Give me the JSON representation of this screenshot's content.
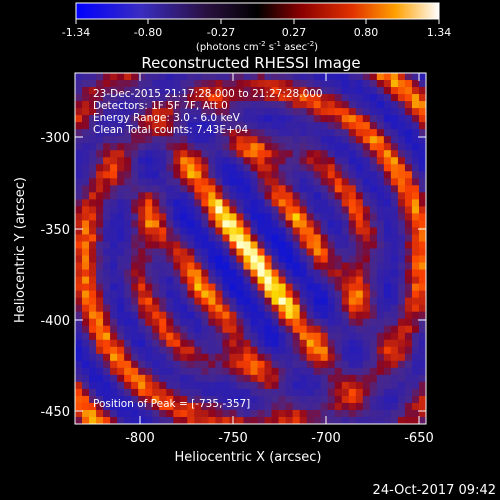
{
  "colorbar": {
    "tick_labels": [
      "-1.34",
      "-0.80",
      "-0.27",
      "0.27",
      "0.80",
      "1.34"
    ],
    "units": "(photons cm",
    "units_exp1": "-2",
    "units_mid": " s",
    "units_exp2": "-1",
    "units_end": " asec",
    "units_exp3": "-2",
    "units_close": ")"
  },
  "title": "Reconstructed RHESSI Image",
  "info": {
    "line1": "23-Dec-2015 21:17:28.000 to 21:27:28.000",
    "line2": "Detectors: 1F 5F 7F, Att 0",
    "line3": "Energy Range: 3.0 - 6.0 keV",
    "line4": "Clean     Total counts: 7.43E+04"
  },
  "peak_text": "Position of Peak = [-735,-357]",
  "axes": {
    "xlabel": "Heliocentric X (arcsec)",
    "ylabel": "Heliocentric Y (arcsec)",
    "xticks": [
      "-800",
      "-750",
      "-700",
      "-650"
    ],
    "yticks": [
      "-300",
      "-350",
      "-400",
      "-450"
    ]
  },
  "timestamp": "24-Oct-2017 09:42",
  "colors": {
    "cmap_low": "#0000ff",
    "cmap_mid": "#000000",
    "cmap_high": "#ffffff",
    "image_background": "#4a2a90"
  }
}
